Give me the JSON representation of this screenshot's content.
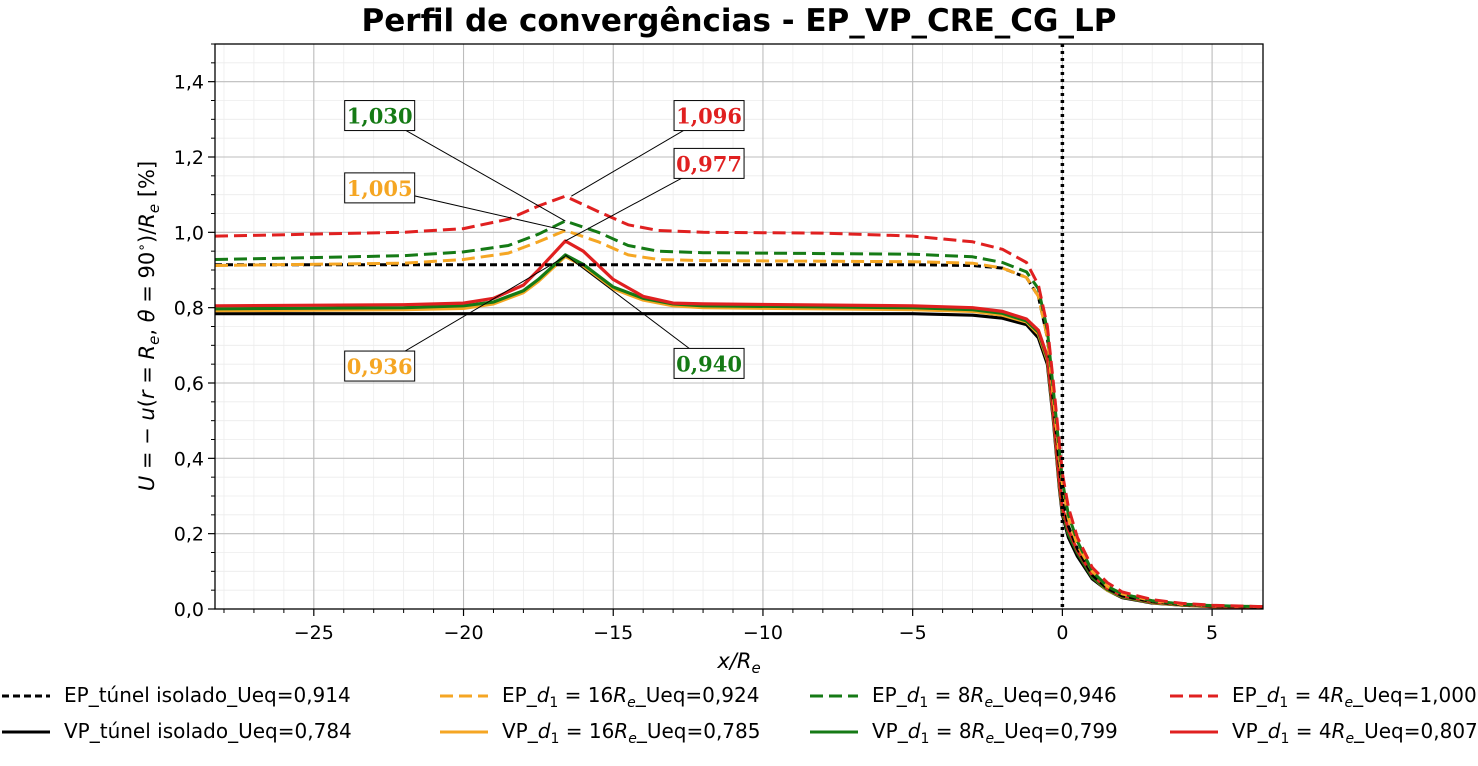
{
  "chart_data": {
    "type": "line",
    "title": "Perfil de convergências - EP_VP_CRE_CG_LP",
    "xlabel": "x/Re",
    "ylabel": "U = −u(r = Re, θ = 90°)/Re [%]",
    "xlim": [
      -28.3,
      6.7
    ],
    "ylim": [
      0.0,
      1.5
    ],
    "xticks": [
      -25,
      -20,
      -15,
      -10,
      -5,
      0,
      5
    ],
    "xtick_labels": [
      "−25",
      "−20",
      "−15",
      "−10",
      "−5",
      "0",
      "5"
    ],
    "yticks": [
      0.0,
      0.2,
      0.4,
      0.6,
      0.8,
      1.0,
      1.2,
      1.4
    ],
    "ytick_labels": [
      "0,0",
      "0,2",
      "0,4",
      "0,6",
      "0,8",
      "1,0",
      "1,2",
      "1,4"
    ],
    "grid": true,
    "vline_x": 0,
    "colors": {
      "black": "#000000",
      "orange": "#f5a623",
      "green": "#157a15",
      "red": "#e02020"
    },
    "series": [
      {
        "name": "EP_túnel isolado_Ueq=0,914",
        "color": "black",
        "dash": true,
        "x": [
          -28.3,
          -5,
          -3,
          -2,
          -1.2,
          -0.8,
          -0.5,
          -0.3,
          -0.1,
          0,
          0.2,
          0.5,
          1,
          1.5,
          2,
          3,
          4,
          5,
          6.7
        ],
        "y": [
          0.914,
          0.914,
          0.912,
          0.905,
          0.88,
          0.83,
          0.72,
          0.55,
          0.38,
          0.3,
          0.22,
          0.16,
          0.09,
          0.055,
          0.035,
          0.02,
          0.012,
          0.008,
          0.005
        ]
      },
      {
        "name": "EP_d1 = 16Re_Ueq=0,924",
        "color": "orange",
        "dash": true,
        "x": [
          -28.3,
          -22,
          -20,
          -18.5,
          -17.5,
          -16.6,
          -15.5,
          -14.5,
          -13.5,
          -12,
          -5,
          -3,
          -2,
          -1.2,
          -0.8,
          -0.5,
          -0.3,
          -0.1,
          0,
          0.2,
          0.5,
          1,
          1.5,
          2,
          3,
          4,
          5,
          6.7
        ],
        "y": [
          0.912,
          0.918,
          0.928,
          0.945,
          0.975,
          1.005,
          0.975,
          0.94,
          0.928,
          0.925,
          0.922,
          0.918,
          0.905,
          0.88,
          0.83,
          0.72,
          0.56,
          0.4,
          0.33,
          0.24,
          0.17,
          0.1,
          0.06,
          0.04,
          0.022,
          0.013,
          0.009,
          0.006
        ]
      },
      {
        "name": "EP_d1 = 8Re_Ueq=0,946",
        "color": "green",
        "dash": true,
        "x": [
          -28.3,
          -22,
          -20,
          -18.5,
          -17.5,
          -16.6,
          -15.5,
          -14.5,
          -13.5,
          -12,
          -5,
          -3,
          -2,
          -1.2,
          -0.8,
          -0.5,
          -0.3,
          -0.1,
          0,
          0.2,
          0.5,
          1,
          1.5,
          2,
          3,
          4,
          5,
          6.7
        ],
        "y": [
          0.928,
          0.938,
          0.948,
          0.965,
          0.995,
          1.03,
          1.0,
          0.965,
          0.95,
          0.946,
          0.942,
          0.935,
          0.92,
          0.895,
          0.85,
          0.74,
          0.58,
          0.42,
          0.34,
          0.25,
          0.18,
          0.1,
          0.06,
          0.04,
          0.022,
          0.013,
          0.009,
          0.006
        ]
      },
      {
        "name": "EP_d1 = 4Re_Ueq=1,000",
        "color": "red",
        "dash": true,
        "x": [
          -28.3,
          -22,
          -20,
          -18.5,
          -17.5,
          -16.6,
          -15.5,
          -14.5,
          -13.5,
          -12,
          -8,
          -5,
          -3,
          -2,
          -1.2,
          -0.8,
          -0.5,
          -0.3,
          -0.1,
          0,
          0.2,
          0.5,
          1,
          1.5,
          2,
          3,
          4,
          5,
          6.7
        ],
        "y": [
          0.99,
          1.0,
          1.01,
          1.035,
          1.07,
          1.096,
          1.055,
          1.02,
          1.005,
          1.0,
          0.998,
          0.99,
          0.975,
          0.955,
          0.92,
          0.86,
          0.75,
          0.6,
          0.44,
          0.36,
          0.27,
          0.19,
          0.11,
          0.07,
          0.045,
          0.025,
          0.015,
          0.01,
          0.006
        ]
      },
      {
        "name": "VP_túnel isolado_Ueq=0,784",
        "color": "black",
        "dash": false,
        "x": [
          -28.3,
          -5,
          -3,
          -2,
          -1.2,
          -0.8,
          -0.5,
          -0.3,
          -0.1,
          0,
          0.2,
          0.5,
          1,
          1.5,
          2,
          3,
          4,
          5,
          6.7
        ],
        "y": [
          0.784,
          0.784,
          0.78,
          0.772,
          0.755,
          0.72,
          0.65,
          0.5,
          0.32,
          0.25,
          0.19,
          0.14,
          0.08,
          0.05,
          0.03,
          0.016,
          0.01,
          0.006,
          0.004
        ]
      },
      {
        "name": "VP_d1 = 16Re_Ueq=0,785",
        "color": "orange",
        "dash": false,
        "x": [
          -28.3,
          -22,
          -20,
          -19,
          -18,
          -17.5,
          -16.6,
          -16,
          -15,
          -14,
          -13,
          -12,
          -5,
          -3,
          -2,
          -1.2,
          -0.8,
          -0.5,
          -0.3,
          -0.1,
          0,
          0.2,
          0.5,
          1,
          1.5,
          2,
          3,
          4,
          5,
          6.7
        ],
        "y": [
          0.792,
          0.795,
          0.798,
          0.81,
          0.84,
          0.87,
          0.936,
          0.91,
          0.85,
          0.82,
          0.805,
          0.8,
          0.795,
          0.79,
          0.78,
          0.762,
          0.73,
          0.66,
          0.51,
          0.33,
          0.26,
          0.2,
          0.15,
          0.085,
          0.05,
          0.032,
          0.017,
          0.01,
          0.006,
          0.004
        ]
      },
      {
        "name": "VP_d1 = 8Re_Ueq=0,799",
        "color": "green",
        "dash": false,
        "x": [
          -28.3,
          -22,
          -20,
          -19,
          -18,
          -17.5,
          -16.6,
          -16,
          -15,
          -14,
          -13,
          -12,
          -5,
          -3,
          -2,
          -1.2,
          -0.8,
          -0.5,
          -0.3,
          -0.1,
          0,
          0.2,
          0.5,
          1,
          1.5,
          2,
          3,
          4,
          5,
          6.7
        ],
        "y": [
          0.797,
          0.8,
          0.805,
          0.815,
          0.845,
          0.875,
          0.94,
          0.915,
          0.855,
          0.825,
          0.81,
          0.805,
          0.8,
          0.795,
          0.785,
          0.765,
          0.735,
          0.665,
          0.515,
          0.335,
          0.265,
          0.2,
          0.15,
          0.085,
          0.052,
          0.033,
          0.018,
          0.011,
          0.007,
          0.004
        ]
      },
      {
        "name": "VP_d1 = 4Re_Ueq=0,807",
        "color": "red",
        "dash": false,
        "x": [
          -28.3,
          -22,
          -20,
          -19,
          -18,
          -17.5,
          -16.6,
          -16,
          -15,
          -14,
          -13,
          -12,
          -5,
          -3,
          -2,
          -1.2,
          -0.8,
          -0.5,
          -0.3,
          -0.1,
          0,
          0.2,
          0.5,
          1,
          1.5,
          2,
          3,
          4,
          5,
          6.7
        ],
        "y": [
          0.805,
          0.808,
          0.812,
          0.825,
          0.86,
          0.9,
          0.977,
          0.95,
          0.875,
          0.83,
          0.812,
          0.81,
          0.805,
          0.8,
          0.79,
          0.77,
          0.74,
          0.67,
          0.52,
          0.34,
          0.27,
          0.21,
          0.155,
          0.09,
          0.055,
          0.035,
          0.019,
          0.012,
          0.007,
          0.004
        ]
      }
    ],
    "annotations": [
      {
        "text": "1,030",
        "color": "green",
        "box_x": -22.8,
        "box_y": 1.31,
        "target_x": -16.6,
        "target_y": 1.03
      },
      {
        "text": "1,096",
        "color": "red",
        "box_x": -11.8,
        "box_y": 1.31,
        "target_x": -16.4,
        "target_y": 1.096
      },
      {
        "text": "0,977",
        "color": "red",
        "box_x": -11.8,
        "box_y": 1.183,
        "target_x": -16.6,
        "target_y": 0.977
      },
      {
        "text": "1,005",
        "color": "orange",
        "box_x": -22.8,
        "box_y": 1.118,
        "target_x": -16.6,
        "target_y": 1.005
      },
      {
        "text": "0,936",
        "color": "orange",
        "box_x": -22.8,
        "box_y": 0.645,
        "target_x": -16.6,
        "target_y": 0.936
      },
      {
        "text": "0,940",
        "color": "green",
        "box_x": -11.8,
        "box_y": 0.652,
        "target_x": -16.6,
        "target_y": 0.94
      }
    ],
    "legend": {
      "placement": "bottom",
      "columns": 4,
      "entries": [
        {
          "label": "EP_túnel isolado_Ueq=0,914",
          "color": "black",
          "dash": true
        },
        {
          "label": "EP_d1 = 16Re_Ueq=0,924",
          "color": "orange",
          "dash": true
        },
        {
          "label": "EP_d1 = 8Re_Ueq=0,946",
          "color": "green",
          "dash": true
        },
        {
          "label": "EP_d1 = 4Re_Ueq=1,000",
          "color": "red",
          "dash": true
        },
        {
          "label": "VP_túnel isolado_Ueq=0,784",
          "color": "black",
          "dash": false
        },
        {
          "label": "VP_d1 = 16Re_Ueq=0,785",
          "color": "orange",
          "dash": false
        },
        {
          "label": "VP_d1 = 8Re_Ueq=0,799",
          "color": "green",
          "dash": false
        },
        {
          "label": "VP_d1 = 4Re_Ueq=0,807",
          "color": "red",
          "dash": false
        }
      ]
    }
  }
}
